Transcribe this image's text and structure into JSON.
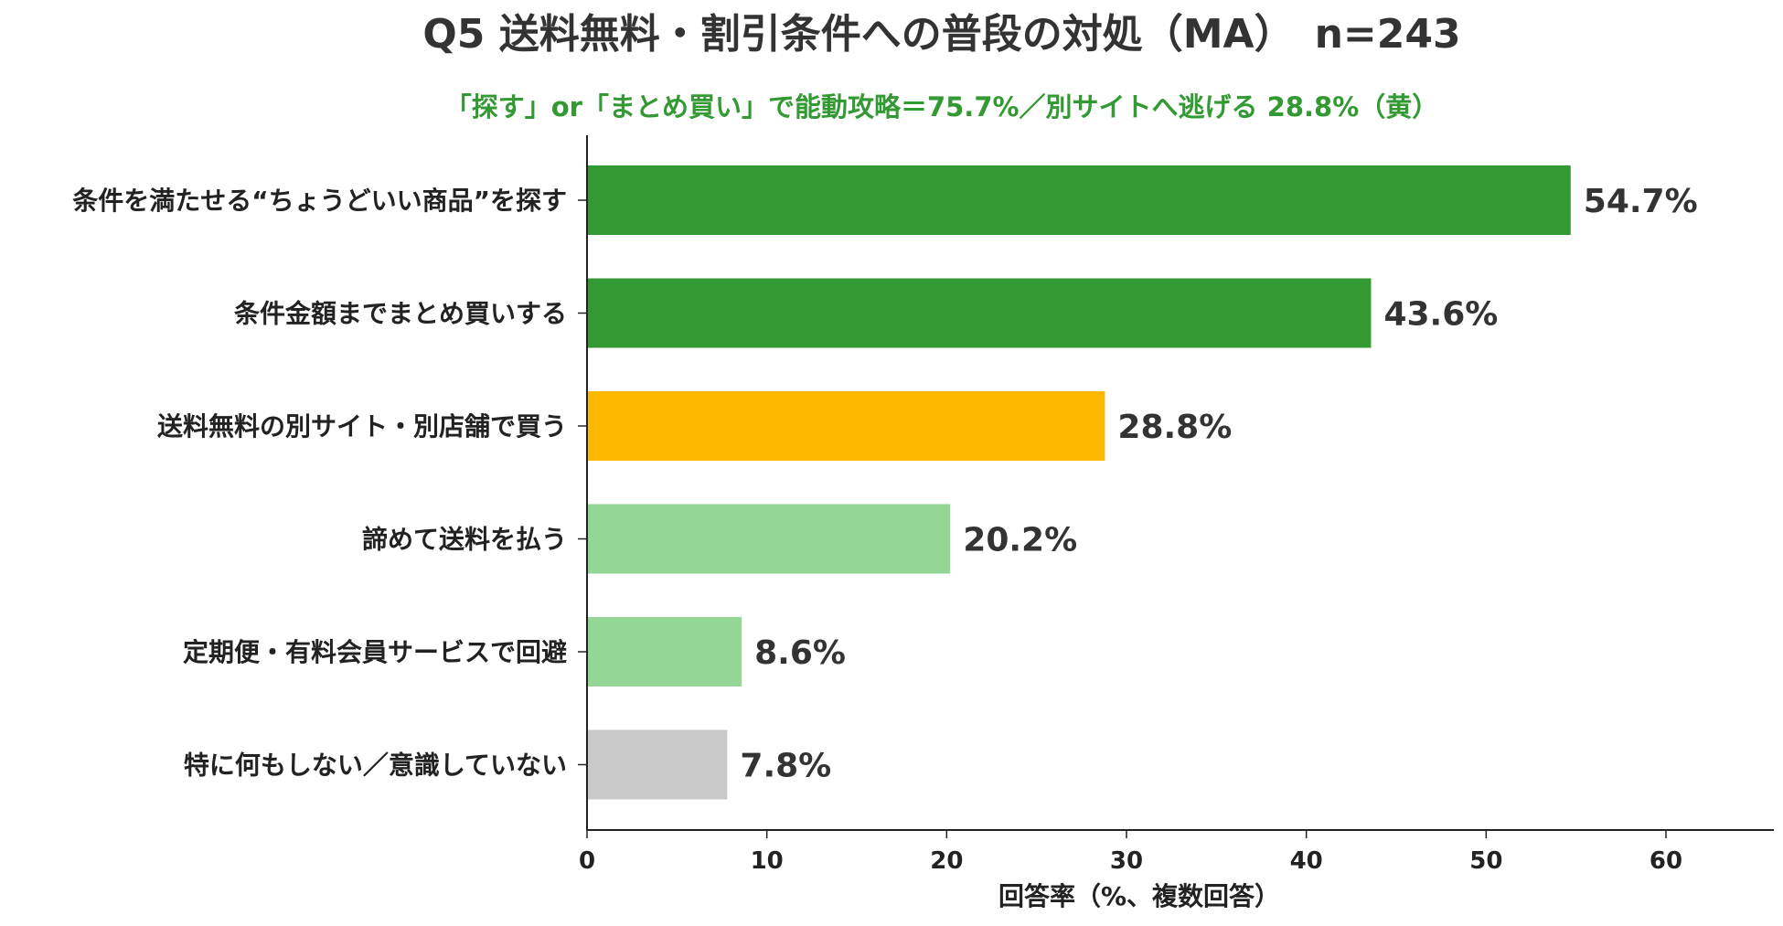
{
  "chart_data": {
    "type": "bar",
    "orientation": "horizontal",
    "title": "Q5 送料無料・割引条件への普段の対処（MA）　n=243",
    "subtitle": "「探す」or「まとめ買い」で能動攻略＝75.7%／別サイトへ逃げる 28.8%（黄）",
    "subtitle_color": "#339933",
    "categories": [
      "条件を満たせる“ちょうどいい商品”を探す",
      "条件金額までまとめ買いする",
      "送料無料の別サイト・別店舗で買う",
      "諦めて送料を払う",
      "定期便・有料会員サービスで回避",
      "特に何もしない／意識していない"
    ],
    "values": [
      54.7,
      43.6,
      28.8,
      20.2,
      8.6,
      7.8
    ],
    "value_labels": [
      "54.7%",
      "43.6%",
      "28.8%",
      "20.2%",
      "8.6%",
      "7.8%"
    ],
    "bar_colors": [
      "#339933",
      "#339933",
      "#FFB800",
      "#93D696",
      "#93D696",
      "#C8C8C8"
    ],
    "xlabel": "回答率（%、複数回答）",
    "ylabel": "",
    "xlim": [
      0,
      66
    ],
    "xticks": [
      0,
      10,
      20,
      30,
      40,
      50,
      60
    ],
    "grid": false,
    "legend": "none"
  }
}
